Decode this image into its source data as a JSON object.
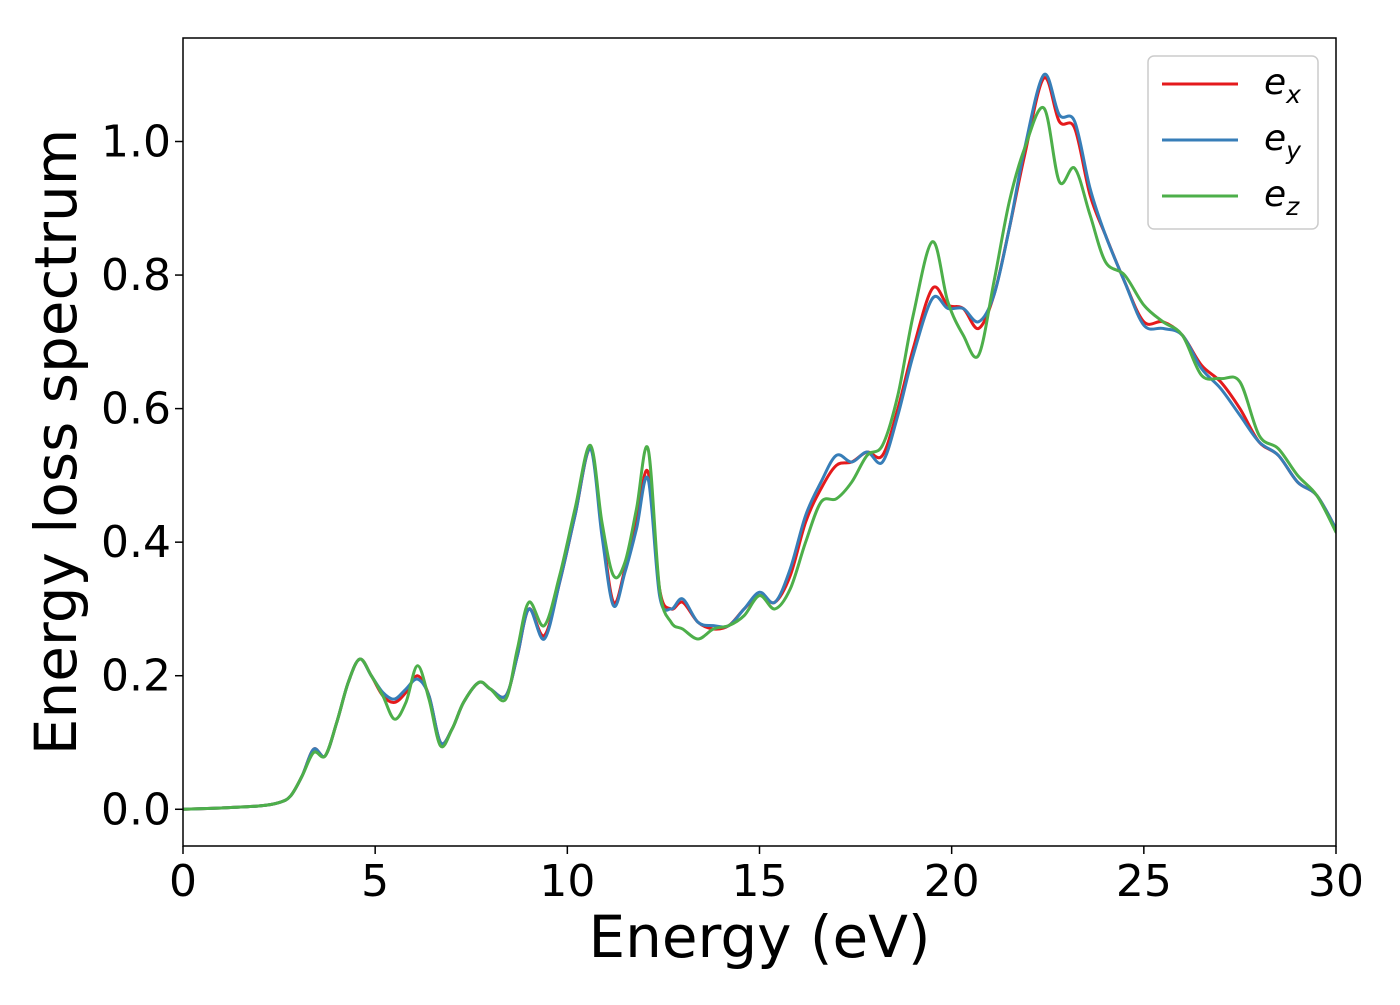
{
  "chart_data": {
    "type": "line",
    "title": "",
    "xlabel": "Energy (eV)",
    "ylabel": "Energy loss spectrum",
    "xlim": [
      0,
      30
    ],
    "ylim": [
      -0.055,
      1.155
    ],
    "xticks": [
      0,
      5,
      10,
      15,
      20,
      25,
      30
    ],
    "xtick_labels": [
      "0",
      "5",
      "10",
      "15",
      "20",
      "25",
      "30"
    ],
    "yticks": [
      0.0,
      0.2,
      0.4,
      0.6,
      0.8,
      1.0
    ],
    "ytick_labels": [
      "0.0",
      "0.2",
      "0.4",
      "0.6",
      "0.8",
      "1.0"
    ],
    "grid": false,
    "legend_position": "top-right",
    "x": [
      0,
      1,
      2,
      2.5,
      2.8,
      3.1,
      3.4,
      3.7,
      4.0,
      4.3,
      4.6,
      4.9,
      5.2,
      5.5,
      5.8,
      6.1,
      6.4,
      6.7,
      7.0,
      7.3,
      7.7,
      8.0,
      8.4,
      8.7,
      9.0,
      9.4,
      9.8,
      10.2,
      10.6,
      10.9,
      11.2,
      11.5,
      11.8,
      12.1,
      12.4,
      12.7,
      13.0,
      13.4,
      13.8,
      14.2,
      14.6,
      15.0,
      15.4,
      15.8,
      16.2,
      16.6,
      17.0,
      17.4,
      17.8,
      18.2,
      18.6,
      19.0,
      19.5,
      19.9,
      20.3,
      20.7,
      21.1,
      21.5,
      21.9,
      22.4,
      22.8,
      23.2,
      23.6,
      24.0,
      24.5,
      25.0,
      25.5,
      26.0,
      26.5,
      27.0,
      27.5,
      28.0,
      28.5,
      29.0,
      29.5,
      30.0
    ],
    "series": [
      {
        "name": "x",
        "color": "#e41a1c",
        "values": [
          0.0,
          0.002,
          0.005,
          0.01,
          0.02,
          0.05,
          0.09,
          0.08,
          0.13,
          0.19,
          0.225,
          0.2,
          0.17,
          0.16,
          0.175,
          0.2,
          0.17,
          0.1,
          0.12,
          0.16,
          0.19,
          0.18,
          0.17,
          0.23,
          0.3,
          0.26,
          0.34,
          0.44,
          0.54,
          0.42,
          0.31,
          0.36,
          0.43,
          0.505,
          0.33,
          0.3,
          0.31,
          0.28,
          0.27,
          0.275,
          0.3,
          0.32,
          0.31,
          0.35,
          0.43,
          0.48,
          0.515,
          0.52,
          0.535,
          0.53,
          0.6,
          0.69,
          0.78,
          0.755,
          0.75,
          0.72,
          0.77,
          0.87,
          0.98,
          1.095,
          1.03,
          1.02,
          0.92,
          0.86,
          0.79,
          0.73,
          0.73,
          0.71,
          0.665,
          0.64,
          0.6,
          0.55,
          0.53,
          0.49,
          0.47,
          0.42
        ]
      },
      {
        "name": "y",
        "color": "#377eb8",
        "values": [
          0.0,
          0.002,
          0.005,
          0.01,
          0.02,
          0.05,
          0.09,
          0.08,
          0.13,
          0.19,
          0.225,
          0.2,
          0.175,
          0.165,
          0.18,
          0.195,
          0.17,
          0.1,
          0.12,
          0.16,
          0.19,
          0.18,
          0.17,
          0.23,
          0.3,
          0.255,
          0.34,
          0.44,
          0.54,
          0.41,
          0.305,
          0.355,
          0.42,
          0.495,
          0.32,
          0.3,
          0.315,
          0.28,
          0.275,
          0.275,
          0.3,
          0.325,
          0.31,
          0.36,
          0.44,
          0.49,
          0.53,
          0.52,
          0.535,
          0.52,
          0.59,
          0.68,
          0.765,
          0.75,
          0.75,
          0.73,
          0.77,
          0.87,
          0.99,
          1.1,
          1.04,
          1.03,
          0.93,
          0.86,
          0.79,
          0.725,
          0.72,
          0.71,
          0.66,
          0.63,
          0.59,
          0.55,
          0.53,
          0.49,
          0.47,
          0.42
        ]
      },
      {
        "name": "z",
        "color": "#4daf4a",
        "values": [
          0.0,
          0.002,
          0.005,
          0.01,
          0.02,
          0.05,
          0.085,
          0.08,
          0.13,
          0.19,
          0.225,
          0.2,
          0.17,
          0.135,
          0.16,
          0.215,
          0.165,
          0.095,
          0.12,
          0.16,
          0.19,
          0.18,
          0.165,
          0.24,
          0.31,
          0.275,
          0.35,
          0.45,
          0.545,
          0.43,
          0.35,
          0.37,
          0.45,
          0.54,
          0.33,
          0.28,
          0.27,
          0.255,
          0.27,
          0.275,
          0.29,
          0.32,
          0.3,
          0.33,
          0.4,
          0.46,
          0.465,
          0.49,
          0.53,
          0.545,
          0.62,
          0.74,
          0.85,
          0.76,
          0.71,
          0.68,
          0.79,
          0.91,
          0.99,
          1.05,
          0.94,
          0.96,
          0.89,
          0.82,
          0.8,
          0.755,
          0.73,
          0.71,
          0.65,
          0.645,
          0.64,
          0.56,
          0.54,
          0.5,
          0.47,
          0.415
        ]
      }
    ]
  }
}
